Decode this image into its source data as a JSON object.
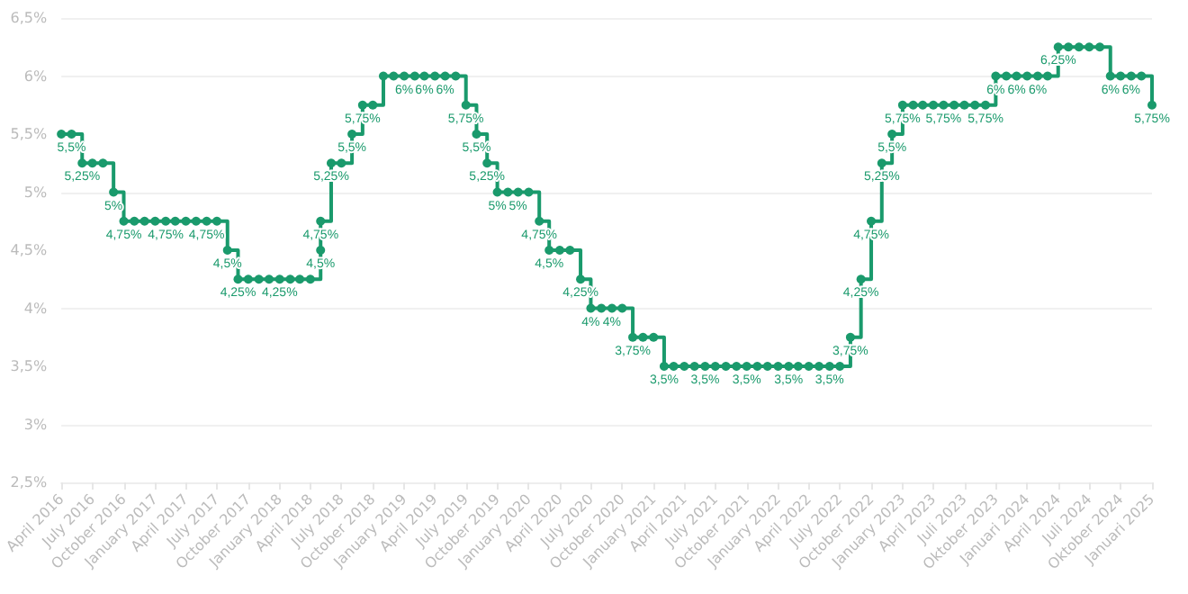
{
  "chart_data": {
    "type": "step",
    "color": "#1a9a6c",
    "marker": "circle",
    "grid": "y",
    "x": [
      "2016-04",
      "2016-05",
      "2016-06",
      "2016-07",
      "2016-08",
      "2016-09",
      "2016-10",
      "2016-11",
      "2016-12",
      "2017-01",
      "2017-02",
      "2017-03",
      "2017-04",
      "2017-05",
      "2017-06",
      "2017-07",
      "2017-08",
      "2017-09",
      "2017-10",
      "2017-11",
      "2017-12",
      "2018-01",
      "2018-02",
      "2018-03",
      "2018-04",
      "2018-05",
      "2018-05",
      "2018-06",
      "2018-07",
      "2018-08",
      "2018-09",
      "2018-10",
      "2018-11",
      "2018-12",
      "2019-01",
      "2019-02",
      "2019-03",
      "2019-04",
      "2019-05",
      "2019-06",
      "2019-07",
      "2019-08",
      "2019-09",
      "2019-10",
      "2019-11",
      "2019-12",
      "2020-01",
      "2020-02",
      "2020-03",
      "2020-04",
      "2020-05",
      "2020-06",
      "2020-07",
      "2020-08",
      "2020-09",
      "2020-10",
      "2020-11",
      "2020-12",
      "2021-01",
      "2021-02",
      "2021-03",
      "2021-04",
      "2021-05",
      "2021-06",
      "2021-07",
      "2021-08",
      "2021-09",
      "2021-10",
      "2021-11",
      "2021-12",
      "2022-01",
      "2022-02",
      "2022-03",
      "2022-04",
      "2022-05",
      "2022-06",
      "2022-07",
      "2022-08",
      "2022-09",
      "2022-10",
      "2022-11",
      "2022-12",
      "2023-01",
      "2023-02",
      "2023-03",
      "2023-04",
      "2023-05",
      "2023-06",
      "2023-07",
      "2023-08",
      "2023-09",
      "2023-10",
      "2023-11",
      "2023-12",
      "2024-01",
      "2024-02",
      "2024-03",
      "2024-04",
      "2024-05",
      "2024-06",
      "2024-07",
      "2024-08",
      "2024-09",
      "2024-10",
      "2024-11",
      "2024-12",
      "2025-01"
    ],
    "values": [
      5.5,
      5.5,
      5.25,
      5.25,
      5.25,
      5,
      4.75,
      4.75,
      4.75,
      4.75,
      4.75,
      4.75,
      4.75,
      4.75,
      4.75,
      4.75,
      4.5,
      4.25,
      4.25,
      4.25,
      4.25,
      4.25,
      4.25,
      4.25,
      4.25,
      4.5,
      4.75,
      5.25,
      5.25,
      5.5,
      5.75,
      5.75,
      6,
      6,
      6,
      6,
      6,
      6,
      6,
      6,
      5.75,
      5.5,
      5.25,
      5,
      5,
      5,
      5,
      4.75,
      4.5,
      4.5,
      4.5,
      4.25,
      4,
      4,
      4,
      4,
      3.75,
      3.75,
      3.75,
      3.5,
      3.5,
      3.5,
      3.5,
      3.5,
      3.5,
      3.5,
      3.5,
      3.5,
      3.5,
      3.5,
      3.5,
      3.5,
      3.5,
      3.5,
      3.5,
      3.5,
      3.5,
      3.75,
      4.25,
      4.75,
      5.25,
      5.5,
      5.75,
      5.75,
      5.75,
      5.75,
      5.75,
      5.75,
      5.75,
      5.75,
      5.75,
      6,
      6,
      6,
      6,
      6,
      6,
      6.25,
      6.25,
      6.25,
      6.25,
      6.25,
      6,
      6,
      6,
      6,
      5.75
    ],
    "value_labels": [
      null,
      "5,5%",
      "5,25%",
      null,
      null,
      "5%",
      "4,75%",
      null,
      null,
      null,
      "4,75%",
      null,
      null,
      null,
      "4,75%",
      null,
      "4,5%",
      "4,25%",
      null,
      null,
      null,
      "4,25%",
      null,
      null,
      null,
      "4,5%",
      "4,75%",
      "5,25%",
      null,
      "5,5%",
      "5,75%",
      null,
      null,
      null,
      "6%",
      null,
      "6%",
      null,
      "6%",
      null,
      "5,75%",
      "5,5%",
      "5,25%",
      "5%",
      null,
      "5%",
      null,
      "4,75%",
      "4,5%",
      null,
      null,
      "4,25%",
      "4%",
      null,
      "4%",
      null,
      "3,75%",
      null,
      null,
      "3,5%",
      null,
      null,
      null,
      "3,5%",
      null,
      null,
      null,
      "3,5%",
      null,
      null,
      null,
      "3,5%",
      null,
      null,
      null,
      "3,5%",
      null,
      "3,75%",
      "4,25%",
      "4,75%",
      "5,25%",
      "5,5%",
      "5,75%",
      null,
      null,
      null,
      "5,75%",
      null,
      null,
      null,
      "5,75%",
      "6%",
      null,
      "6%",
      null,
      "6%",
      null,
      "6,25%",
      null,
      null,
      null,
      null,
      "6%",
      null,
      "6%",
      null,
      "5,75%"
    ],
    "ylim": [
      2.5,
      6.5
    ],
    "yticks": [
      {
        "value": 2.5,
        "label": "2,5%"
      },
      {
        "value": 3,
        "label": "3%"
      },
      {
        "value": 3.5,
        "label": "3,5%"
      },
      {
        "value": 4,
        "label": "4%"
      },
      {
        "value": 4.5,
        "label": "4,5%"
      },
      {
        "value": 5,
        "label": "5%"
      },
      {
        "value": 5.5,
        "label": "5,5%"
      },
      {
        "value": 6,
        "label": "6%"
      },
      {
        "value": 6.5,
        "label": "6,5%"
      }
    ],
    "xlim": [
      "2016-04",
      "2025-01"
    ],
    "xticks": [
      {
        "value": "2016-04",
        "label": "April 2016"
      },
      {
        "value": "2016-07",
        "label": "July 2016"
      },
      {
        "value": "2016-10",
        "label": "October 2016"
      },
      {
        "value": "2017-01",
        "label": "January 2017"
      },
      {
        "value": "2017-04",
        "label": "April 2017"
      },
      {
        "value": "2017-07",
        "label": "July 2017"
      },
      {
        "value": "2017-10",
        "label": "October 2017"
      },
      {
        "value": "2018-01",
        "label": "January 2018"
      },
      {
        "value": "2018-04",
        "label": "April 2018"
      },
      {
        "value": "2018-07",
        "label": "July 2018"
      },
      {
        "value": "2018-10",
        "label": "October 2018"
      },
      {
        "value": "2019-01",
        "label": "January 2019"
      },
      {
        "value": "2019-04",
        "label": "April 2019"
      },
      {
        "value": "2019-07",
        "label": "July 2019"
      },
      {
        "value": "2019-10",
        "label": "October 2019"
      },
      {
        "value": "2020-01",
        "label": "January 2020"
      },
      {
        "value": "2020-04",
        "label": "April 2020"
      },
      {
        "value": "2020-07",
        "label": "July 2020"
      },
      {
        "value": "2020-10",
        "label": "October 2020"
      },
      {
        "value": "2021-01",
        "label": "January 2021"
      },
      {
        "value": "2021-04",
        "label": "April 2021"
      },
      {
        "value": "2021-07",
        "label": "July 2021"
      },
      {
        "value": "2021-10",
        "label": "October 2021"
      },
      {
        "value": "2022-01",
        "label": "January 2022"
      },
      {
        "value": "2022-04",
        "label": "April 2022"
      },
      {
        "value": "2022-07",
        "label": "July 2022"
      },
      {
        "value": "2022-10",
        "label": "October 2022"
      },
      {
        "value": "2023-01",
        "label": "January 2023"
      },
      {
        "value": "2023-04",
        "label": "April 2023"
      },
      {
        "value": "2023-07",
        "label": "Juli 2023"
      },
      {
        "value": "2023-10",
        "label": "Oktober 2023"
      },
      {
        "value": "2024-01",
        "label": "Januari 2024"
      },
      {
        "value": "2024-04",
        "label": "April 2024"
      },
      {
        "value": "2024-07",
        "label": "Juli 2024"
      },
      {
        "value": "2024-10",
        "label": "Oktober 2024"
      },
      {
        "value": "2025-01",
        "label": "Januari 2025"
      }
    ]
  }
}
